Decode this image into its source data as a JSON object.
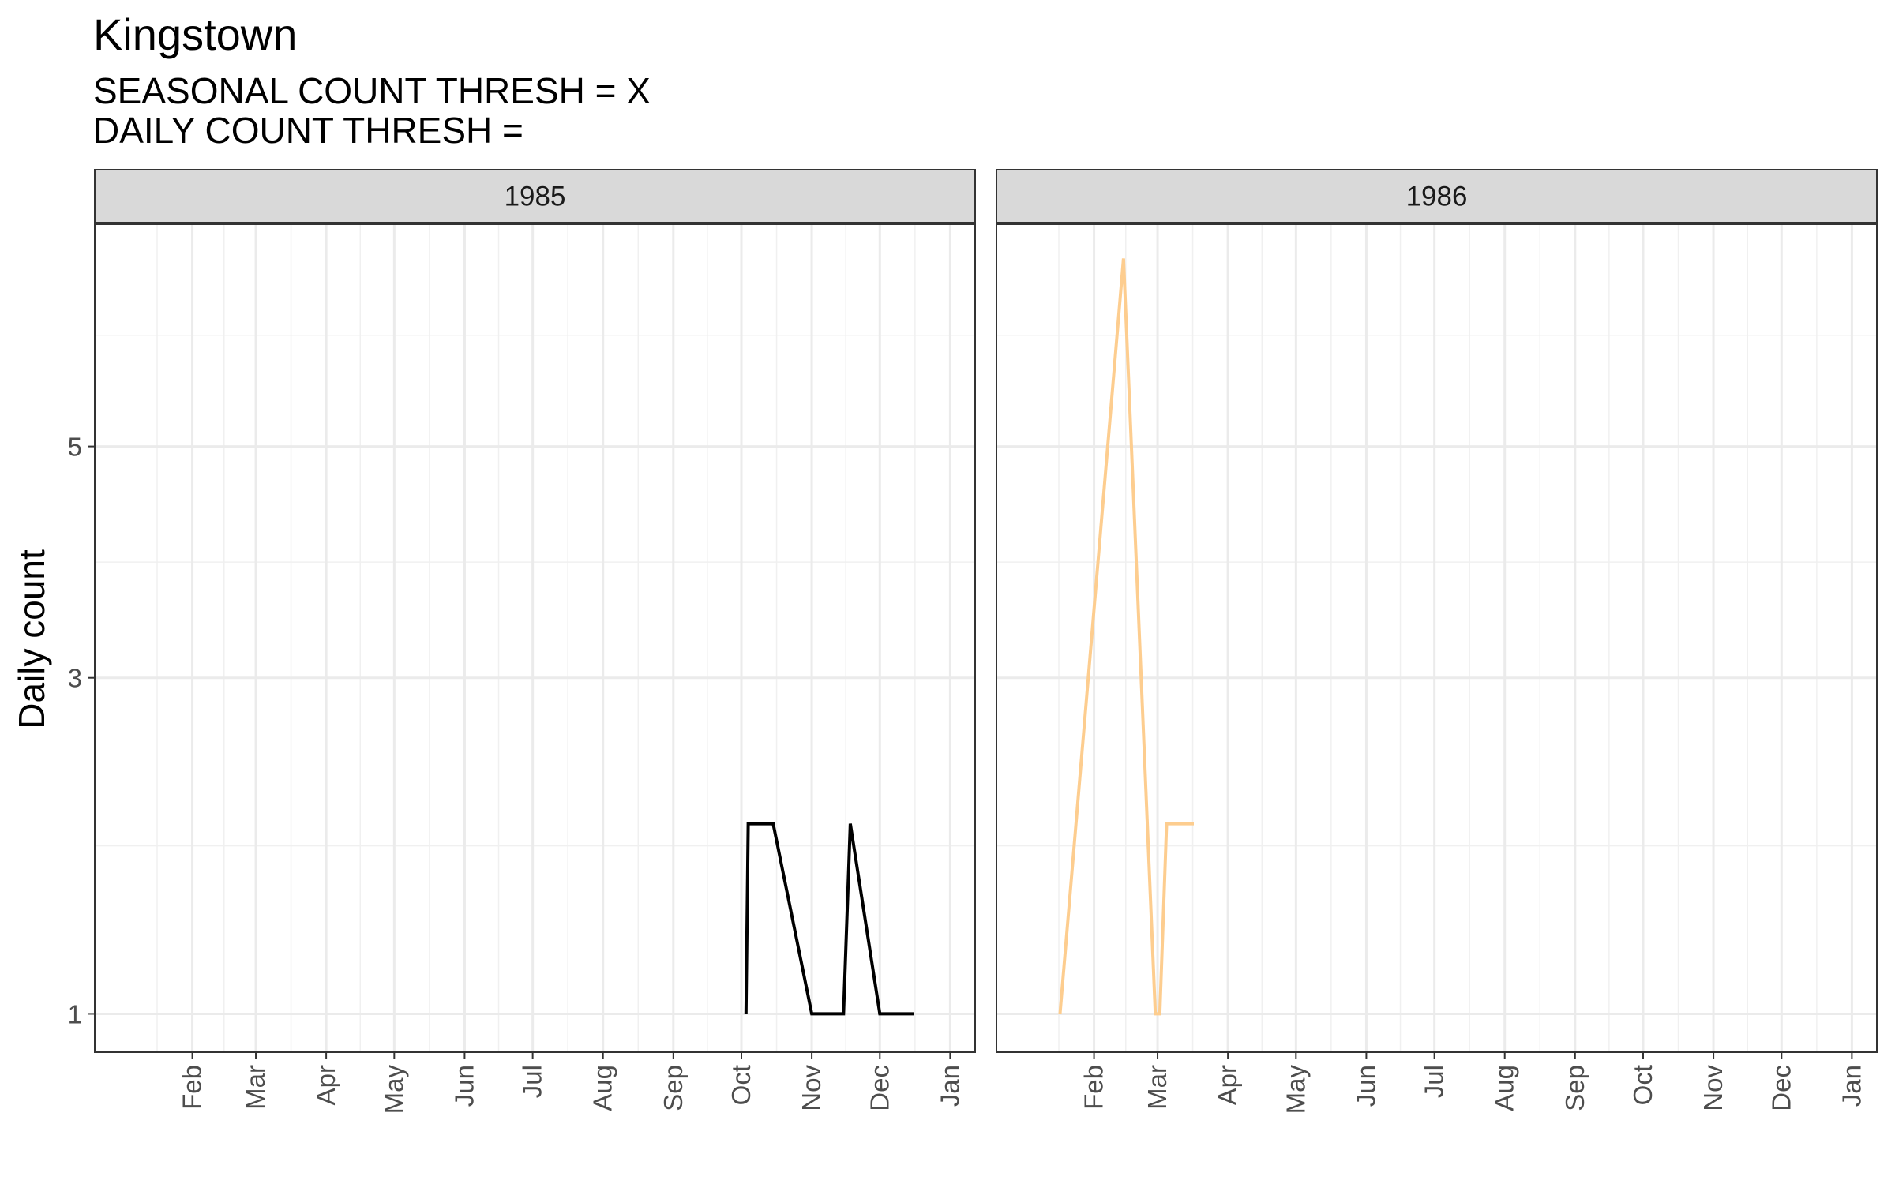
{
  "chart_data": {
    "type": "line",
    "title": "Kingstown",
    "subtitle_lines": [
      "SEASONAL COUNT THRESH = X",
      "DAILY COUNT THRESH ="
    ],
    "ylabel": "Daily count",
    "xlabel": "",
    "y_scale": "sqrt",
    "ylim": [
      0.84,
      7.4
    ],
    "y_ticks": [
      1,
      3,
      5
    ],
    "grid": true,
    "month_ticks": [
      "Feb",
      "Mar",
      "Apr",
      "May",
      "Jun",
      "Jul",
      "Aug",
      "Sep",
      "Oct",
      "Nov",
      "Dec",
      "Jan"
    ],
    "panels": [
      {
        "label": "1985",
        "xlim": [
          "1985-01-01",
          "1985-12-31"
        ],
        "series": [
          {
            "color": "#000000",
            "points": [
              {
                "x": "1985-10-03",
                "y": 1
              },
              {
                "x": "1985-10-04",
                "y": 2
              },
              {
                "x": "1985-10-15",
                "y": 2
              },
              {
                "x": "1985-11-01",
                "y": 1
              },
              {
                "x": "1985-11-15",
                "y": 1
              },
              {
                "x": "1985-11-18",
                "y": 2
              },
              {
                "x": "1985-12-01",
                "y": 1
              },
              {
                "x": "1985-12-16",
                "y": 1
              }
            ]
          }
        ]
      },
      {
        "label": "1986",
        "xlim": [
          "1986-01-01",
          "1986-12-31"
        ],
        "series": [
          {
            "color": "#fdcd8f",
            "points": [
              {
                "x": "1986-01-17",
                "y": 1
              },
              {
                "x": "1986-02-14",
                "y": 7
              },
              {
                "x": "1986-02-28",
                "y": 1
              },
              {
                "x": "1986-03-02",
                "y": 1
              },
              {
                "x": "1986-03-05",
                "y": 2
              },
              {
                "x": "1986-03-17",
                "y": 2
              }
            ]
          }
        ]
      }
    ]
  }
}
